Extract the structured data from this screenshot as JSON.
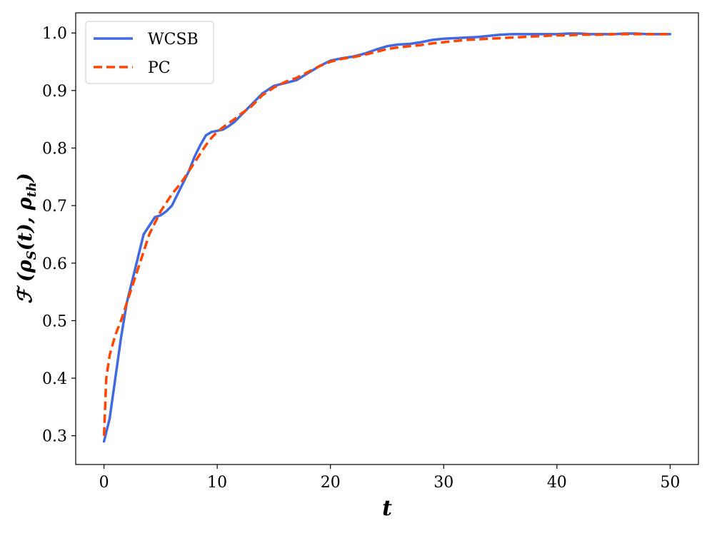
{
  "chart_data": {
    "type": "line",
    "title": "",
    "xlabel": "t",
    "ylabel_main": "ℱ (ρ",
    "ylabel_sub1": "S",
    "ylabel_mid": "(t), ρ",
    "ylabel_sub2": "th",
    "ylabel_end": ")",
    "xlim": [
      -2.5,
      52.5
    ],
    "ylim": [
      0.25,
      1.035
    ],
    "x_ticks": [
      0,
      10,
      20,
      30,
      40,
      50
    ],
    "y_ticks": [
      0.3,
      0.4,
      0.5,
      0.6,
      0.7,
      0.8,
      0.9,
      1.0
    ],
    "x_tick_labels": [
      "0",
      "10",
      "20",
      "30",
      "40",
      "50"
    ],
    "y_tick_labels": [
      "0.3",
      "0.4",
      "0.5",
      "0.6",
      "0.7",
      "0.8",
      "0.9",
      "1.0"
    ],
    "legend_position": "top-left",
    "grid": false,
    "series": [
      {
        "name": "WCSB",
        "color": "#4169E1",
        "dash": "solid",
        "x": [
          0,
          0.5,
          1,
          1.5,
          2,
          2.5,
          3,
          3.5,
          4,
          4.5,
          5,
          5.5,
          6,
          6.5,
          7,
          7.5,
          8,
          8.5,
          9,
          9.5,
          10,
          10.5,
          11,
          11.5,
          12,
          13,
          14,
          15,
          16,
          17,
          18,
          19,
          20,
          21,
          22,
          23,
          24,
          25,
          26,
          27,
          28,
          29,
          30,
          31,
          32,
          33,
          34,
          35,
          36,
          37,
          38,
          39,
          40,
          41,
          42,
          43,
          44,
          45,
          46,
          47,
          48,
          49,
          50
        ],
        "y": [
          0.29,
          0.33,
          0.4,
          0.47,
          0.53,
          0.57,
          0.61,
          0.65,
          0.665,
          0.68,
          0.683,
          0.69,
          0.7,
          0.72,
          0.74,
          0.76,
          0.785,
          0.805,
          0.822,
          0.828,
          0.83,
          0.832,
          0.838,
          0.845,
          0.855,
          0.875,
          0.895,
          0.908,
          0.913,
          0.918,
          0.93,
          0.942,
          0.952,
          0.956,
          0.959,
          0.964,
          0.971,
          0.977,
          0.98,
          0.981,
          0.984,
          0.988,
          0.99,
          0.991,
          0.992,
          0.993,
          0.995,
          0.997,
          0.998,
          0.998,
          0.998,
          0.998,
          0.998,
          0.999,
          0.999,
          0.998,
          0.998,
          0.998,
          0.999,
          0.999,
          0.998,
          0.998,
          0.998
        ]
      },
      {
        "name": "PC",
        "color": "#FF4500",
        "dash": "dashed",
        "x": [
          0,
          0.2,
          0.5,
          1,
          1.5,
          2,
          2.5,
          3,
          3.5,
          4,
          4.5,
          5,
          5.5,
          6,
          6.5,
          7,
          7.5,
          8,
          8.5,
          9,
          9.5,
          10,
          10.5,
          11,
          11.5,
          12,
          13,
          14,
          15,
          16,
          17,
          18,
          19,
          20,
          21,
          22,
          23,
          24,
          25,
          26,
          27,
          28,
          29,
          30,
          31,
          32,
          33,
          34,
          35,
          36,
          37,
          38,
          39,
          40,
          41,
          42,
          43,
          44,
          45,
          46,
          47,
          48,
          49,
          50
        ],
        "y": [
          0.3,
          0.4,
          0.44,
          0.475,
          0.5,
          0.53,
          0.56,
          0.59,
          0.62,
          0.65,
          0.67,
          0.69,
          0.705,
          0.72,
          0.732,
          0.745,
          0.76,
          0.775,
          0.79,
          0.805,
          0.818,
          0.828,
          0.836,
          0.843,
          0.85,
          0.858,
          0.872,
          0.892,
          0.905,
          0.915,
          0.922,
          0.932,
          0.942,
          0.95,
          0.955,
          0.958,
          0.962,
          0.967,
          0.972,
          0.975,
          0.977,
          0.979,
          0.982,
          0.984,
          0.986,
          0.988,
          0.989,
          0.99,
          0.991,
          0.992,
          0.993,
          0.994,
          0.995,
          0.996,
          0.996,
          0.997,
          0.997,
          0.997,
          0.998,
          0.998,
          0.998,
          0.998,
          0.998,
          0.998
        ]
      }
    ]
  }
}
